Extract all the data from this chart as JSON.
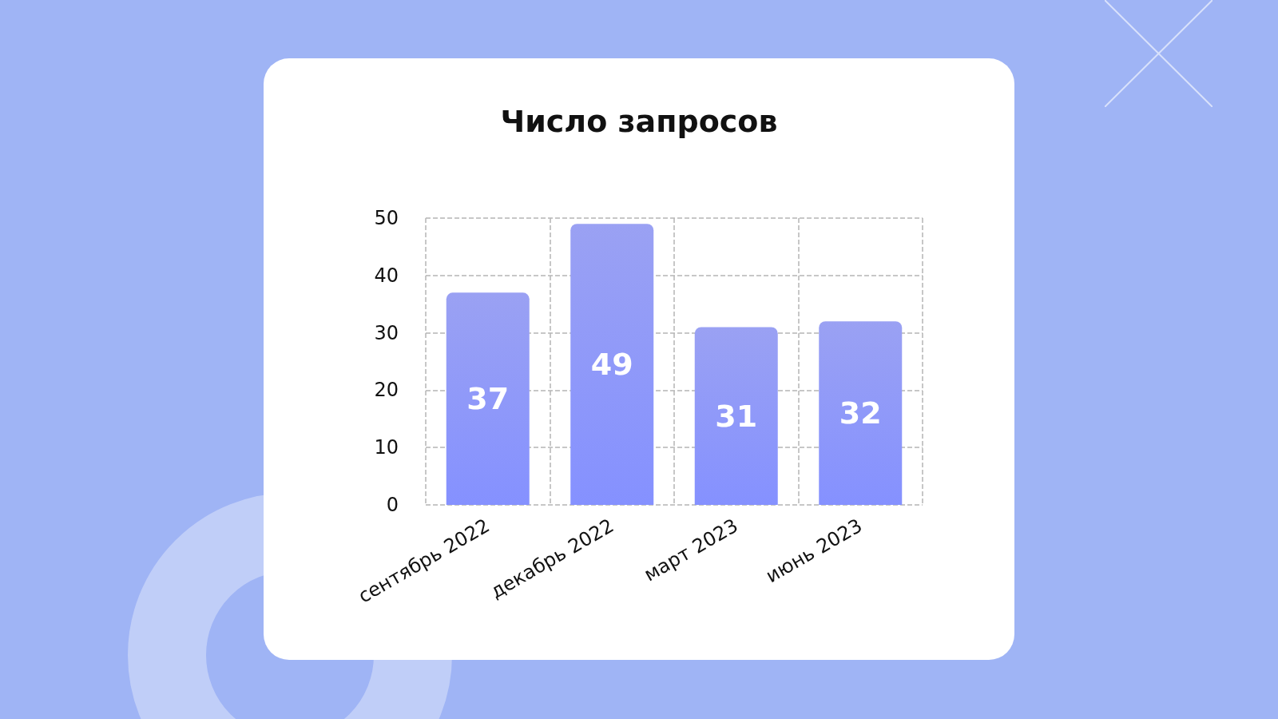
{
  "chart_data": {
    "type": "bar",
    "title": "Число запросов",
    "categories": [
      "сентябрь 2022",
      "декабрь 2022",
      "март 2023",
      "июнь 2023"
    ],
    "values": [
      37,
      49,
      31,
      32
    ],
    "color": "#6f79ee",
    "ylim": [
      0,
      50
    ],
    "yticks": [
      0,
      10,
      20,
      30,
      40,
      50
    ],
    "grid": true,
    "data_labels": true
  }
}
